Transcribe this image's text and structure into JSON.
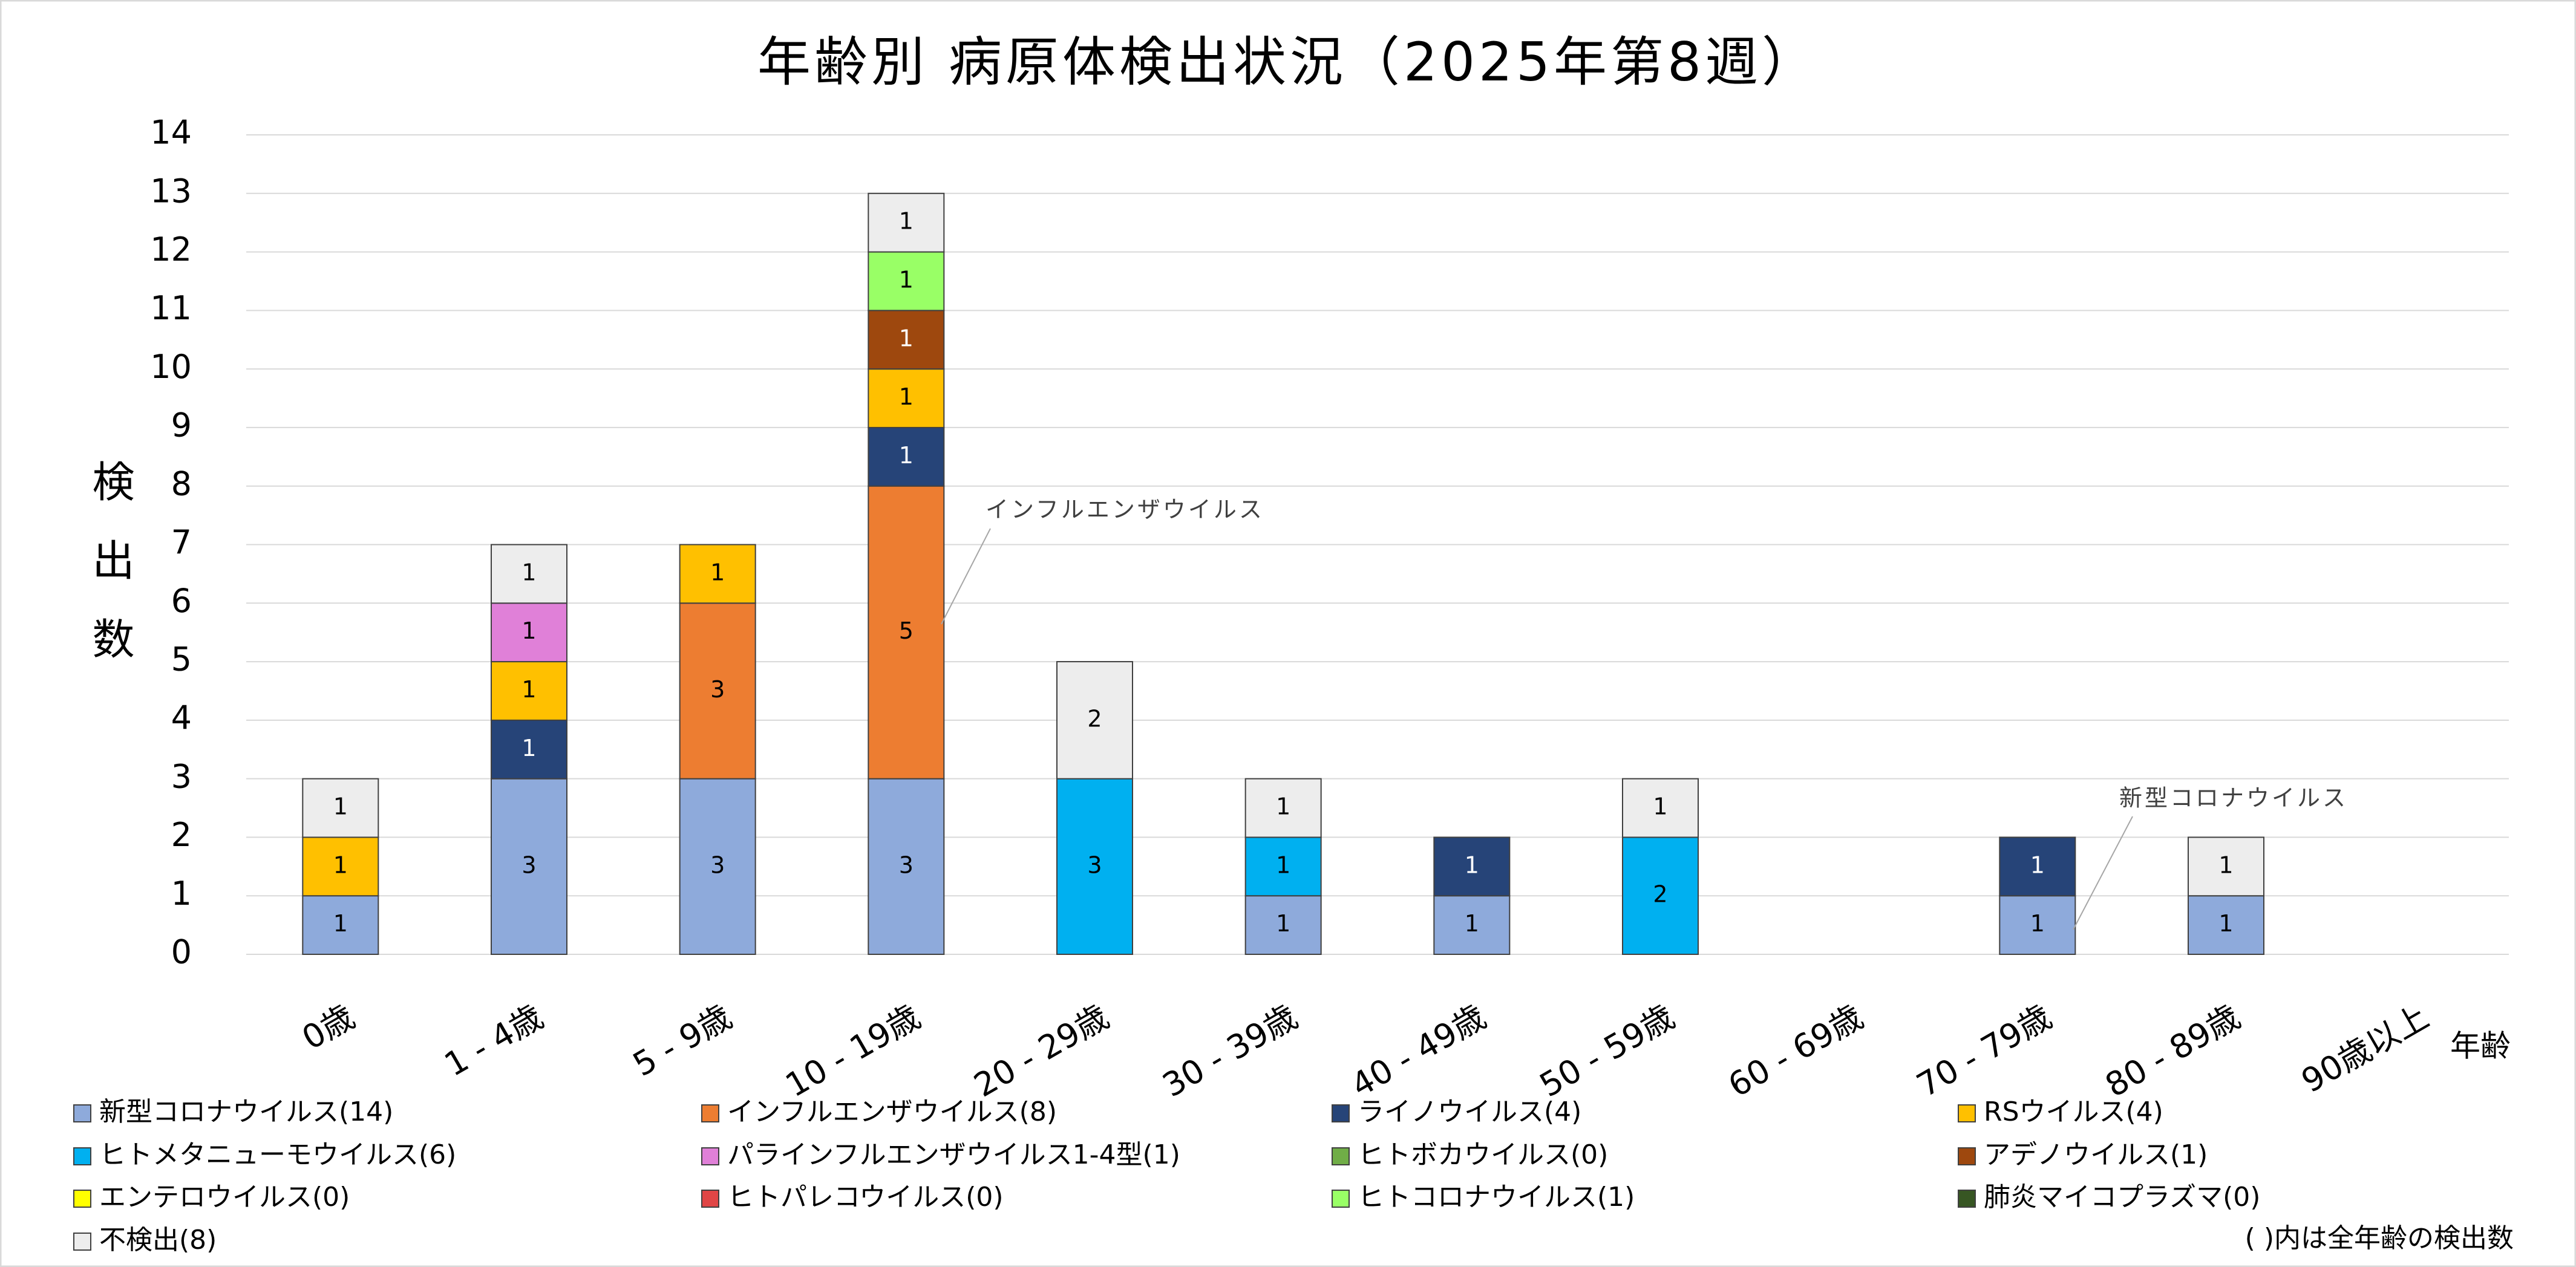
{
  "chart_data": {
    "type": "stacked_bar",
    "title": "年齢別 病原体検出状況（2025年第8週）",
    "y_label": "検出数",
    "x_label": "年齢",
    "note": "( )内は全年齢の検出数",
    "annotations": [
      "インフルエンザウイルス",
      "新型コロナウイルス"
    ],
    "categories": [
      "0歳",
      "1 - 4歳",
      "5 - 9歳",
      "10 - 19歳",
      "20 - 29歳",
      "30 - 39歳",
      "40 - 49歳",
      "50 - 59歳",
      "60 - 69歳",
      "70 - 79歳",
      "80 - 89歳",
      "90歳以上"
    ],
    "series": [
      {
        "name": "新型コロナウイルス(14)",
        "color": "#8eaadb",
        "values": [
          1,
          3,
          3,
          3,
          0,
          1,
          1,
          0,
          0,
          1,
          1,
          0
        ]
      },
      {
        "name": "インフルエンザウイルス(8)",
        "color": "#ed7d31",
        "values": [
          0,
          0,
          3,
          5,
          0,
          0,
          0,
          0,
          0,
          0,
          0,
          0
        ]
      },
      {
        "name": "ライノウイルス(4)",
        "color": "#264478",
        "values": [
          0,
          1,
          0,
          1,
          0,
          0,
          1,
          0,
          0,
          1,
          0,
          0
        ]
      },
      {
        "name": "RSウイルス(4)",
        "color": "#ffc000",
        "values": [
          1,
          1,
          1,
          1,
          0,
          0,
          0,
          0,
          0,
          0,
          0,
          0
        ]
      },
      {
        "name": "ヒトメタニューモウイルス(6)",
        "color": "#00b0f0",
        "values": [
          0,
          0,
          0,
          0,
          3,
          1,
          0,
          2,
          0,
          0,
          0,
          0
        ]
      },
      {
        "name": "パラインフルエンザウイルス1-4型(1)",
        "color": "#e080d8",
        "values": [
          0,
          1,
          0,
          0,
          0,
          0,
          0,
          0,
          0,
          0,
          0,
          0
        ]
      },
      {
        "name": "ヒトボカウイルス(0)",
        "color": "#70ad47",
        "values": [
          0,
          0,
          0,
          0,
          0,
          0,
          0,
          0,
          0,
          0,
          0,
          0
        ]
      },
      {
        "name": "アデノウイルス(1)",
        "color": "#9e480e",
        "values": [
          0,
          0,
          0,
          1,
          0,
          0,
          0,
          0,
          0,
          0,
          0,
          0
        ]
      },
      {
        "name": "エンテロウイルス(0)",
        "color": "#ffff00",
        "values": [
          0,
          0,
          0,
          0,
          0,
          0,
          0,
          0,
          0,
          0,
          0,
          0
        ]
      },
      {
        "name": "ヒトパレコウイルス(0)",
        "color": "#e04646",
        "values": [
          0,
          0,
          0,
          0,
          0,
          0,
          0,
          0,
          0,
          0,
          0,
          0
        ]
      },
      {
        "name": "ヒトコロナウイルス(1)",
        "color": "#99ff66",
        "values": [
          0,
          0,
          0,
          1,
          0,
          0,
          0,
          0,
          0,
          0,
          0,
          0
        ]
      },
      {
        "name": "肺炎マイコプラズマ(0)",
        "color": "#375623",
        "values": [
          0,
          0,
          0,
          0,
          0,
          0,
          0,
          0,
          0,
          0,
          0,
          0
        ]
      },
      {
        "name": "不検出(8)",
        "color": "#ededed",
        "values": [
          1,
          1,
          0,
          1,
          2,
          1,
          0,
          1,
          0,
          0,
          1,
          0
        ]
      }
    ],
    "ylim": [
      0,
      14
    ],
    "yticks": [
      0,
      1,
      2,
      3,
      4,
      5,
      6,
      7,
      8,
      9,
      10,
      11,
      12,
      13,
      14
    ],
    "grid": true
  }
}
